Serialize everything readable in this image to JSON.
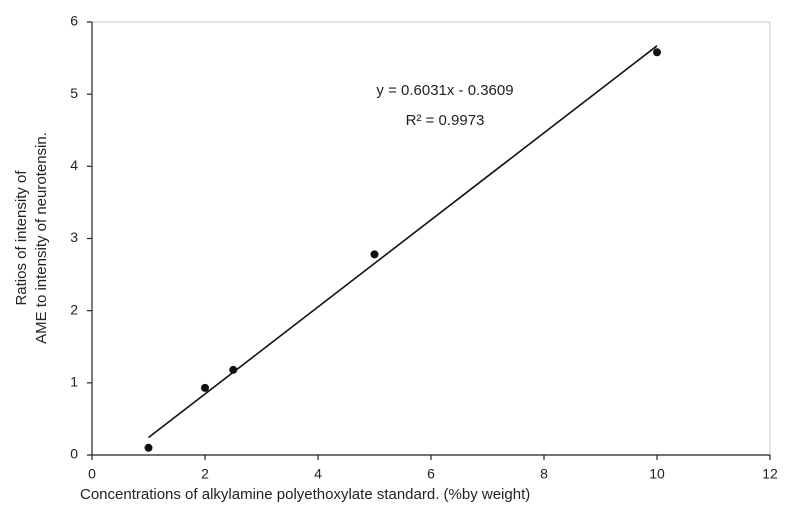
{
  "chart_data": {
    "type": "scatter",
    "x": [
      1,
      2,
      2.5,
      5,
      10
    ],
    "series": [
      {
        "color": "#111111",
        "values": [
          0.1,
          0.93,
          1.18,
          2.78,
          5.58
        ]
      }
    ],
    "trendline": {
      "x": [
        1,
        10
      ],
      "values": [
        0.2422,
        5.6701
      ],
      "color": "#111111"
    },
    "annotations": [
      "y = 0.6031x - 0.3609",
      "R² = 0.9973"
    ],
    "xlabel": "Concentrations of alkylamine polyethoxylate standard.  (%by weight)",
    "ylabel": [
      "Ratios of intensity of",
      "AME to intensity of neurotensin."
    ],
    "xlim": [
      0,
      12
    ],
    "xticks": [
      0,
      2,
      4,
      6,
      8,
      10,
      12
    ],
    "ylim": [
      0,
      6
    ],
    "yticks": [
      0,
      1,
      2,
      3,
      4,
      5,
      6
    ],
    "grid": false
  }
}
